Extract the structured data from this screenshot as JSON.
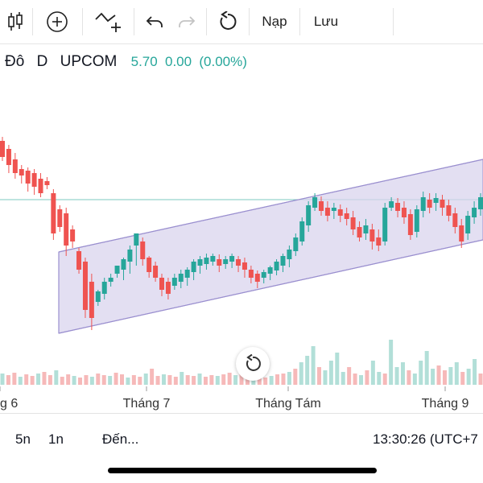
{
  "toolbar": {
    "items": [
      {
        "icon": "candlestick-icon"
      },
      {
        "icon": "plus-circle-icon"
      },
      {
        "icon": "add-indicator-icon"
      },
      {
        "icon": "undo-icon"
      },
      {
        "icon": "redo-icon"
      },
      {
        "icon": "refresh-icon"
      }
    ],
    "load_label": "Nạp",
    "save_label": "Lưu"
  },
  "symbol": {
    "name_fragment": "Đô",
    "interval": "D",
    "exchange": "UPCOM",
    "price": "5.70",
    "change": "0.00",
    "change_pct": "(0.00%)"
  },
  "colors": {
    "up": "#26a69a",
    "down": "#ef5350",
    "channel_fill": "#d9d4ee",
    "channel_line": "#9a8fcf",
    "price_line": "#26a69a"
  },
  "chart_data": {
    "type": "candlestick",
    "x_tick_labels": [
      "g 6",
      "Tháng 7",
      "Tháng Tám",
      "Tháng 9"
    ]
  },
  "bottom_bar": {
    "range_5y": "5n",
    "range_1y": "1n",
    "goto_label": "Đến...",
    "clock": "13:30:26 (UTC+7"
  },
  "reset_icon": "reset-chart-icon"
}
